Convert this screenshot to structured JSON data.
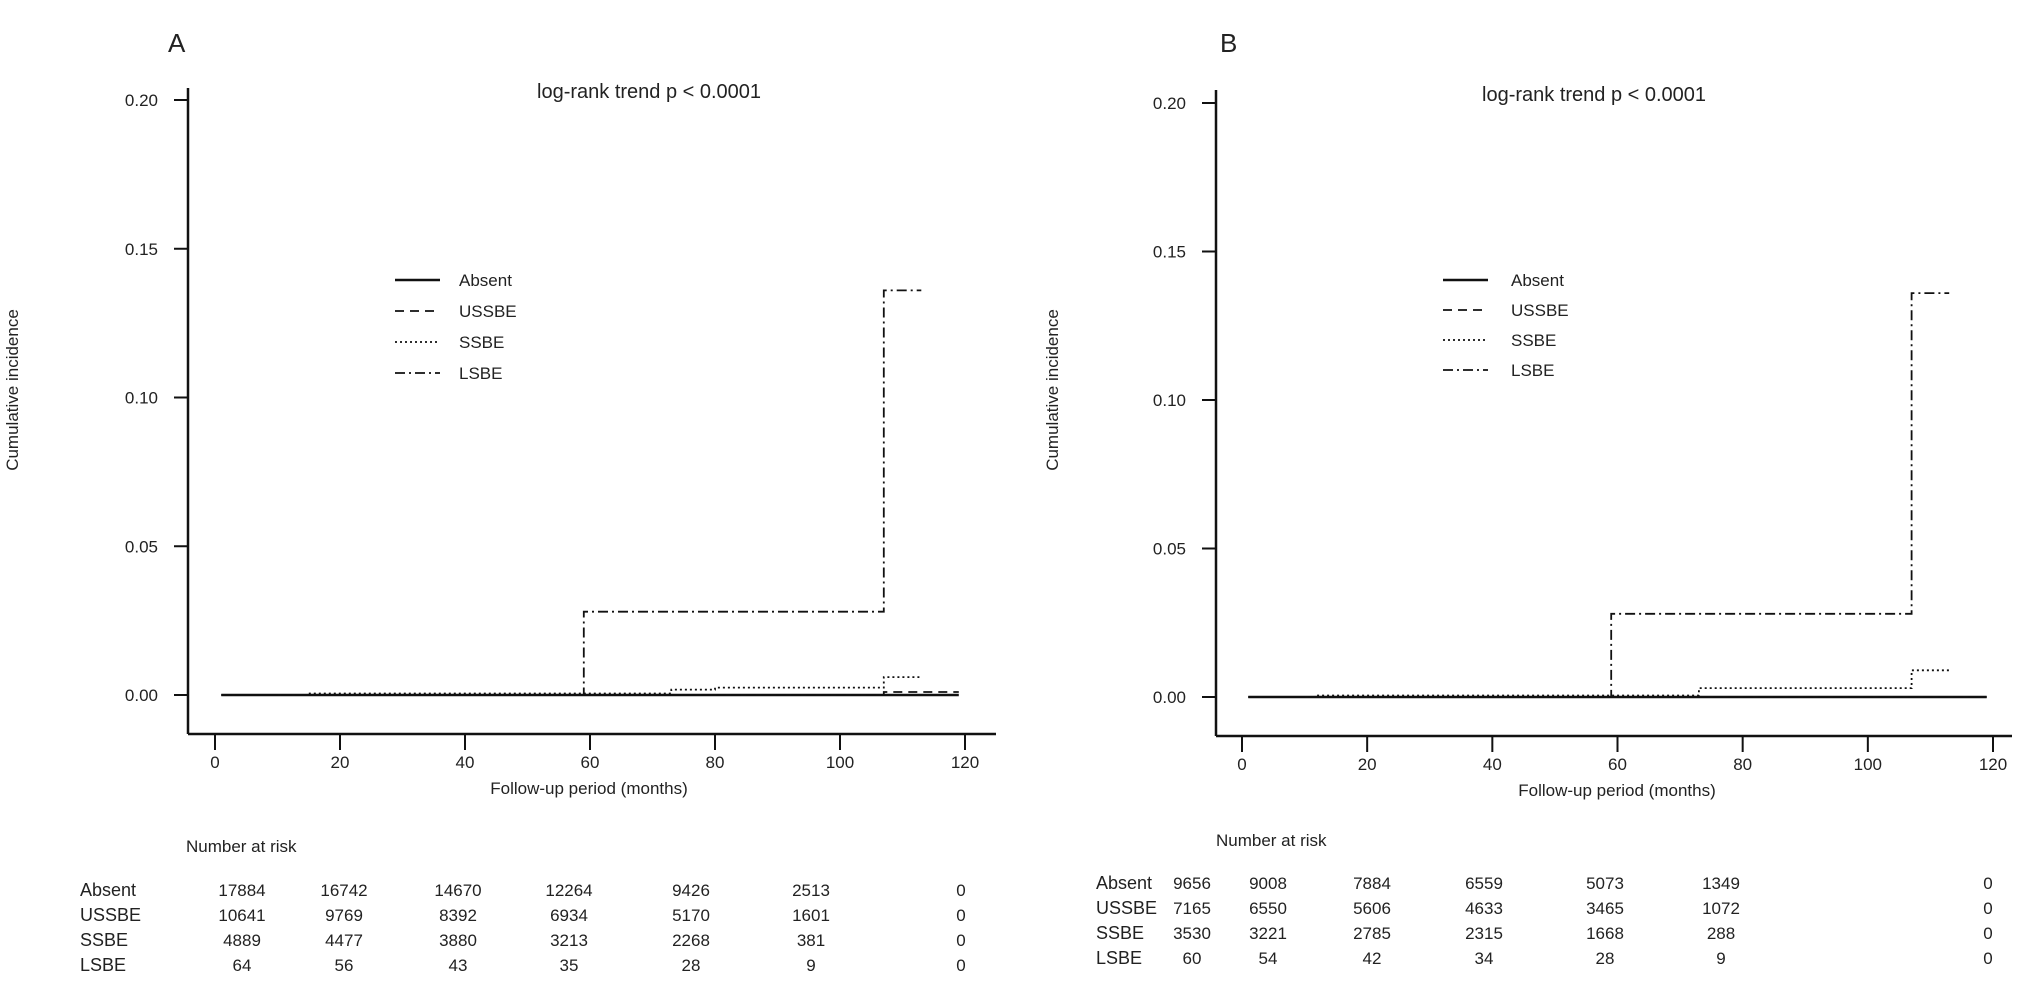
{
  "chart_data": [
    {
      "type": "line",
      "panel_label": "A",
      "title": "log-rank trend p < 0.0001",
      "xlabel": "Follow-up period  (months)",
      "ylabel": "Cumulative incidence",
      "xlim": [
        0,
        120
      ],
      "ylim": [
        0,
        0.2
      ],
      "xticks": [
        "0",
        "20",
        "40",
        "60",
        "80",
        "100",
        "120"
      ],
      "yticks": [
        "0.00",
        "0.05",
        "0.10",
        "0.15",
        "0.20"
      ],
      "grid": false,
      "legend_position": "center-left",
      "series": [
        {
          "name": "Absent",
          "style": "solid",
          "x": [
            1,
            119
          ],
          "y": [
            0,
            0
          ]
        },
        {
          "name": "USSBE",
          "style": "dashed",
          "x": [
            1,
            107,
            107,
            119
          ],
          "y": [
            0,
            0,
            0.001,
            0.001
          ]
        },
        {
          "name": "SSBE",
          "style": "dotted",
          "x": [
            15,
            73,
            73,
            80,
            80,
            107,
            107,
            113
          ],
          "y": [
            0.0005,
            0.0005,
            0.0018,
            0.0018,
            0.0025,
            0.0025,
            0.006,
            0.006
          ]
        },
        {
          "name": "LSBE",
          "style": "dashdot",
          "x": [
            1,
            59,
            59,
            107,
            107,
            113
          ],
          "y": [
            0,
            0,
            0.028,
            0.028,
            0.136,
            0.136
          ]
        }
      ],
      "risk_table": {
        "title": "Number at risk",
        "rows": [
          {
            "label": "Absent",
            "values": [
              "17884",
              "16742",
              "14670",
              "12264",
              "9426",
              "2513",
              "0"
            ]
          },
          {
            "label": "USSBE",
            "values": [
              "10641",
              "9769",
              "8392",
              "6934",
              "5170",
              "1601",
              "0"
            ]
          },
          {
            "label": "SSBE",
            "values": [
              "4889",
              "4477",
              "3880",
              "3213",
              "2268",
              "381",
              "0"
            ]
          },
          {
            "label": "LSBE",
            "values": [
              "64",
              "56",
              "43",
              "35",
              "28",
              "9",
              "0"
            ]
          }
        ]
      }
    },
    {
      "type": "line",
      "panel_label": "B",
      "title": "log-rank trend p < 0.0001",
      "xlabel": "Follow-up period  (months)",
      "ylabel": "Cumulative incidence",
      "xlim": [
        0,
        120
      ],
      "ylim": [
        0,
        0.2
      ],
      "xticks": [
        "0",
        "20",
        "40",
        "60",
        "80",
        "100",
        "120"
      ],
      "yticks": [
        "0.00",
        "0.05",
        "0.10",
        "0.15",
        "0.20"
      ],
      "grid": false,
      "legend_position": "center-left",
      "series": [
        {
          "name": "Absent",
          "style": "solid",
          "x": [
            1,
            119
          ],
          "y": [
            0,
            0
          ]
        },
        {
          "name": "USSBE",
          "style": "dashed",
          "x": [
            1,
            119
          ],
          "y": [
            0,
            0
          ]
        },
        {
          "name": "SSBE",
          "style": "dotted",
          "x": [
            12,
            73,
            73,
            107,
            107,
            113
          ],
          "y": [
            0.0005,
            0.0005,
            0.003,
            0.003,
            0.009,
            0.009
          ]
        },
        {
          "name": "LSBE",
          "style": "dashdot",
          "x": [
            1,
            59,
            59,
            107,
            107,
            113
          ],
          "y": [
            0,
            0,
            0.028,
            0.028,
            0.136,
            0.136
          ]
        }
      ],
      "risk_table": {
        "title": "Number at risk",
        "rows": [
          {
            "label": "Absent",
            "values": [
              "9656",
              "9008",
              "7884",
              "6559",
              "5073",
              "1349",
              "0"
            ]
          },
          {
            "label": "USSBE",
            "values": [
              "7165",
              "6550",
              "5606",
              "4633",
              "3465",
              "1072",
              "0"
            ]
          },
          {
            "label": "SSBE",
            "values": [
              "3530",
              "3221",
              "2785",
              "2315",
              "1668",
              "288",
              "0"
            ]
          },
          {
            "label": "LSBE",
            "values": [
              "60",
              "54",
              "42",
              "34",
              "28",
              "9",
              "0"
            ]
          }
        ]
      }
    }
  ]
}
